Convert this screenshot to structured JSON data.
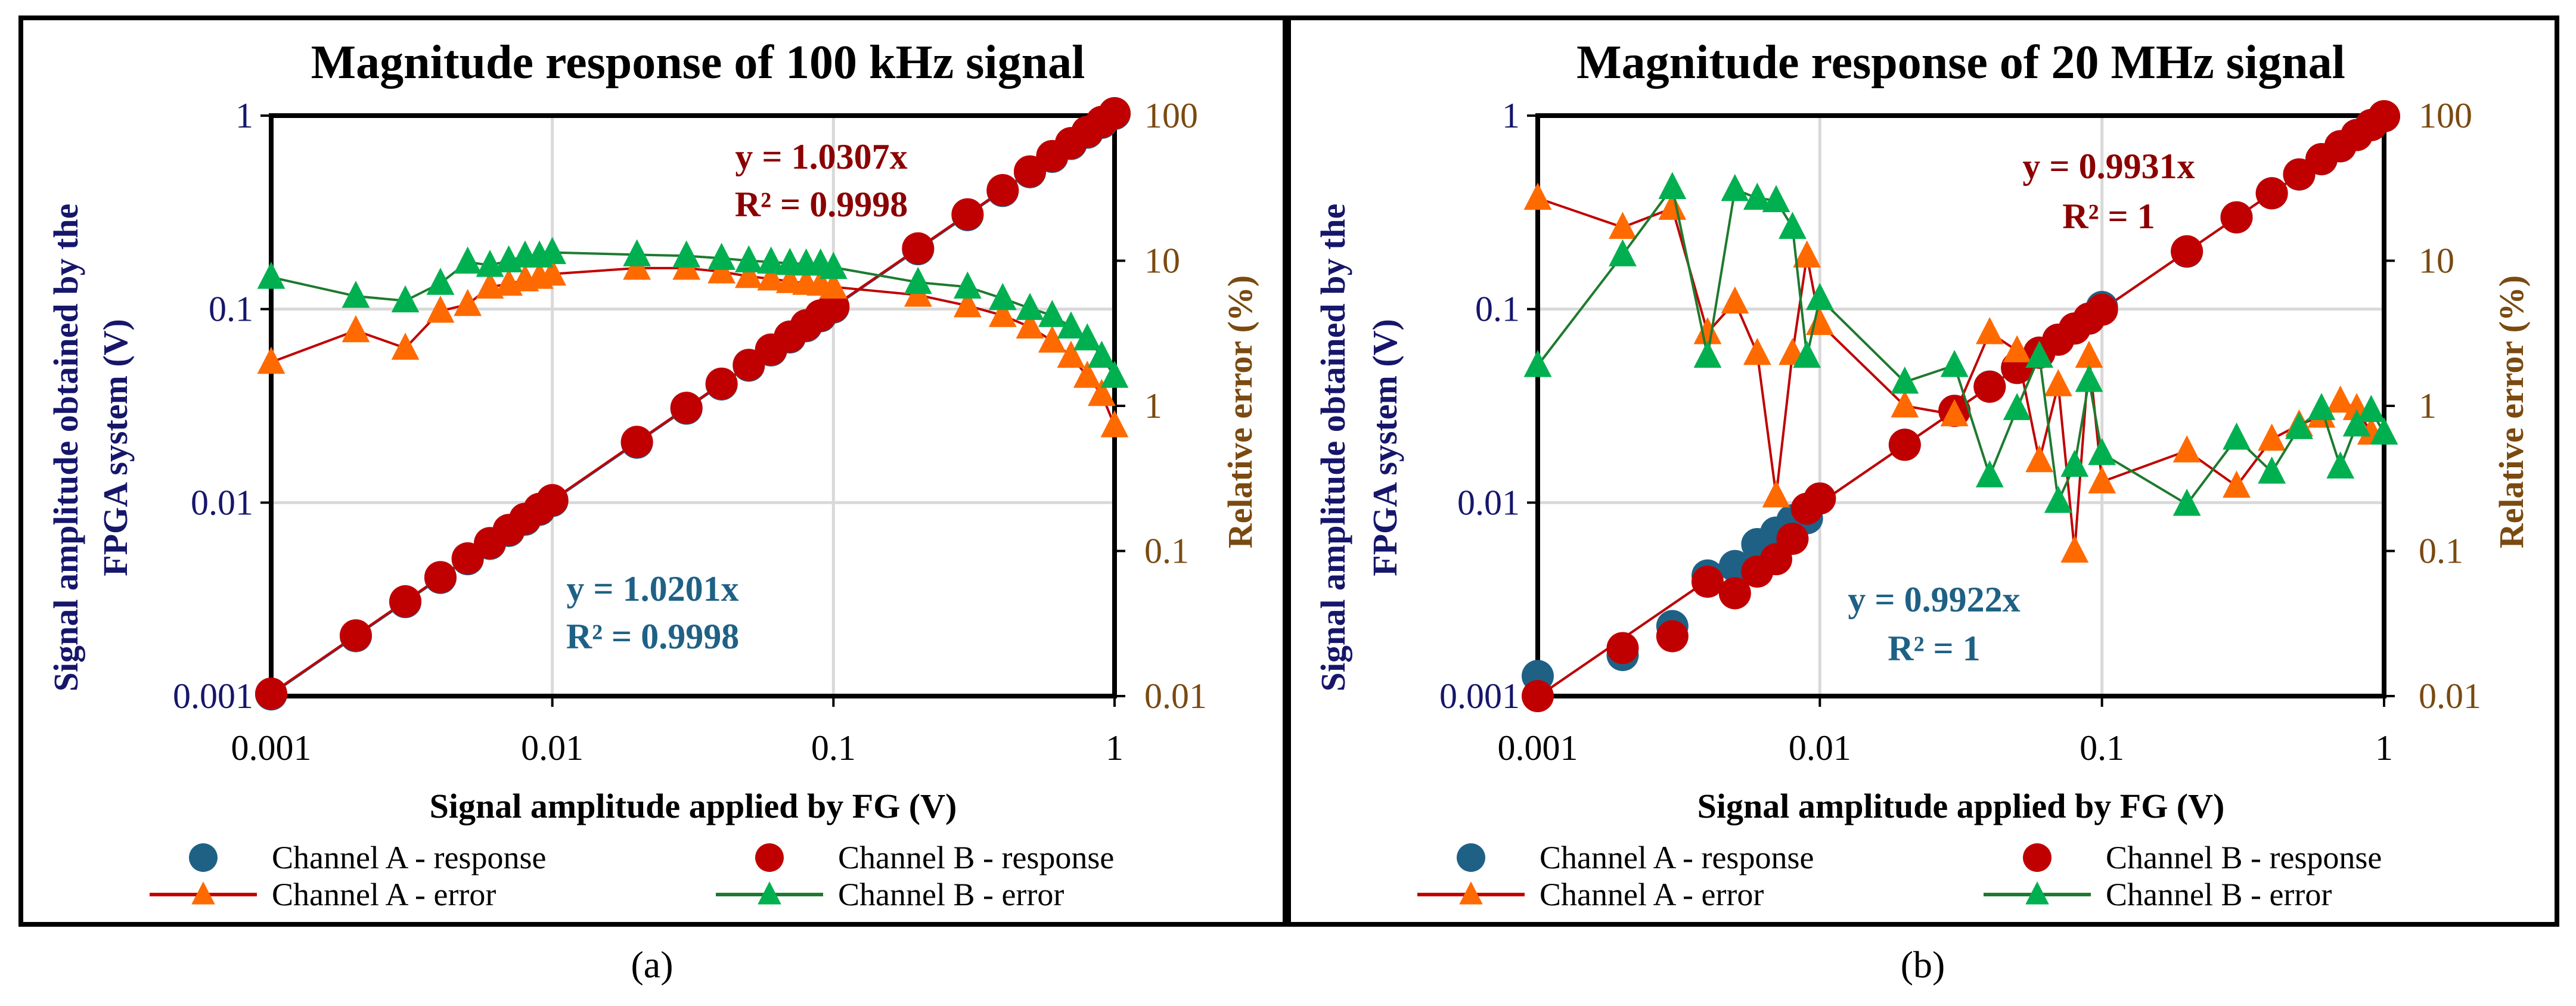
{
  "colors": {
    "channel_a_response": "#1f6185",
    "channel_b_response": "#c00000",
    "channel_a_error_marker": "#ff6a00",
    "channel_a_error_line": "#c00000",
    "channel_b_error_marker": "#00b050",
    "channel_b_error_line": "#1e7a2e",
    "left_axis": "#16166b",
    "right_axis": "#7a4a10",
    "eq_b": "#8b0000",
    "eq_a": "#1f6185"
  },
  "chart_data": [
    {
      "type": "scatter",
      "panel_label": "(a)",
      "title": "Magnitude response of 100 kHz signal",
      "xlabel": "Signal amplitude applied by FG (V)",
      "ylabel_lines": [
        "Signal amplitude obtained by the",
        "FPGA system (V)"
      ],
      "y2label": "Relative error (%)",
      "xscale": "log",
      "xlim": [
        0.001,
        1
      ],
      "xticks": [
        "0.001",
        "0.01",
        "0.1",
        "1"
      ],
      "yscale": "log",
      "ylim": [
        0.001,
        1
      ],
      "yticks": [
        "0.001",
        "0.01",
        "0.1",
        "1"
      ],
      "y2scale": "log",
      "y2lim": [
        0.01,
        100
      ],
      "y2ticks": [
        "0.01",
        "0.1",
        "1",
        "10",
        "100"
      ],
      "grid": true,
      "legend_position": "bottom",
      "x": [
        0.001,
        0.002,
        0.003,
        0.004,
        0.005,
        0.006,
        0.007,
        0.008,
        0.009,
        0.01,
        0.02,
        0.03,
        0.04,
        0.05,
        0.06,
        0.07,
        0.08,
        0.09,
        0.1,
        0.2,
        0.3,
        0.4,
        0.5,
        0.6,
        0.7,
        0.8,
        0.9,
        1
      ],
      "series": [
        {
          "name": "Channel A - response",
          "axis": "left",
          "kind": "marker-circle",
          "values": [
            0.00102,
            0.00204,
            0.00306,
            0.00408,
            0.0051,
            0.00612,
            0.00714,
            0.00816,
            0.00918,
            0.0102,
            0.0204,
            0.0306,
            0.0408,
            0.051,
            0.0612,
            0.0714,
            0.0816,
            0.0918,
            0.102,
            0.204,
            0.306,
            0.408,
            0.51,
            0.612,
            0.714,
            0.816,
            0.918,
            1.02
          ]
        },
        {
          "name": "Channel B - response",
          "axis": "left",
          "kind": "marker-circle",
          "values": [
            0.00103,
            0.00206,
            0.00309,
            0.00412,
            0.00515,
            0.00618,
            0.00722,
            0.00825,
            0.00928,
            0.0103,
            0.0206,
            0.0309,
            0.0412,
            0.0515,
            0.0618,
            0.0721,
            0.0825,
            0.0928,
            0.103,
            0.206,
            0.309,
            0.412,
            0.515,
            0.618,
            0.721,
            0.825,
            0.928,
            1.03
          ]
        },
        {
          "name": "Channel A - error",
          "axis": "right",
          "kind": "line-triangle",
          "values": [
            2.0,
            3.3,
            2.5,
            4.5,
            5.0,
            6.6,
            6.9,
            7.4,
            7.7,
            8.1,
            8.9,
            8.9,
            8.4,
            7.8,
            7.5,
            7.2,
            7.0,
            6.9,
            6.6,
            5.8,
            4.9,
            4.2,
            3.5,
            2.8,
            2.2,
            1.6,
            1.2,
            0.73
          ]
        },
        {
          "name": "Channel B - error",
          "axis": "right",
          "kind": "line-triangle",
          "values": [
            7.7,
            5.7,
            5.3,
            7.0,
            9.8,
            9.3,
            10.0,
            10.8,
            10.8,
            11.4,
            11.0,
            10.8,
            10.4,
            10.0,
            9.8,
            9.6,
            9.5,
            9.5,
            9.0,
            7.1,
            6.6,
            5.5,
            4.7,
            4.2,
            3.5,
            2.9,
            2.2,
            1.6
          ]
        }
      ],
      "trendlines": [
        {
          "series": "Channel B - response",
          "equation": "y = 1.0307x",
          "r2": "R² = 0.9998",
          "slope": 1.0307
        },
        {
          "series": "Channel A - response",
          "equation": "y = 1.0201x",
          "r2": "R² = 0.9998",
          "slope": 1.0201
        }
      ]
    },
    {
      "type": "scatter",
      "panel_label": "(b)",
      "title": "Magnitude response of 20 MHz signal",
      "xlabel": "Signal amplitude applied by FG (V)",
      "ylabel_lines": [
        "Signal amplitude obtained by the",
        "FPGA system (V)"
      ],
      "y2label": "Relative error (%)",
      "xscale": "log",
      "xlim": [
        0.001,
        1
      ],
      "xticks": [
        "0.001",
        "0.01",
        "0.1",
        "1"
      ],
      "yscale": "log",
      "ylim": [
        0.001,
        1
      ],
      "yticks": [
        "0.001",
        "0.01",
        "0.1",
        "1"
      ],
      "y2scale": "log",
      "y2lim": [
        0.01,
        100
      ],
      "y2ticks": [
        "0.01",
        "0.1",
        "1",
        "10",
        "100"
      ],
      "grid": true,
      "legend_position": "bottom",
      "x": [
        0.001,
        0.002,
        0.003,
        0.004,
        0.005,
        0.006,
        0.007,
        0.008,
        0.009,
        0.01,
        0.02,
        0.03,
        0.04,
        0.05,
        0.06,
        0.07,
        0.08,
        0.09,
        0.1,
        0.2,
        0.3,
        0.4,
        0.5,
        0.6,
        0.7,
        0.8,
        0.9,
        1
      ],
      "series": [
        {
          "name": "Channel A - response",
          "axis": "left",
          "kind": "marker-circle",
          "values": [
            0.00127,
            0.00163,
            0.0023,
            0.0042,
            0.0047,
            0.0061,
            0.007,
            0.0081,
            0.0083,
            0.0105,
            0.0199,
            0.0298,
            0.0398,
            0.0496,
            0.0595,
            0.0695,
            0.0794,
            0.0893,
            0.1025,
            0.198,
            0.298,
            0.397,
            0.496,
            0.595,
            0.694,
            0.794,
            0.893,
            0.992
          ]
        },
        {
          "name": "Channel B - response",
          "axis": "left",
          "kind": "marker-circle",
          "values": [
            0.001,
            0.00177,
            0.00204,
            0.0039,
            0.0034,
            0.0044,
            0.0051,
            0.0065,
            0.0093,
            0.0105,
            0.0199,
            0.0298,
            0.0397,
            0.0497,
            0.0596,
            0.0695,
            0.0794,
            0.0894,
            0.0993,
            0.199,
            0.298,
            0.397,
            0.497,
            0.596,
            0.695,
            0.794,
            0.894,
            0.993
          ]
        },
        {
          "name": "Channel A - error",
          "axis": "right",
          "kind": "line-triangle",
          "values": [
            27,
            17,
            23,
            3.2,
            5.2,
            2.3,
            0.24,
            2.3,
            10.8,
            3.7,
            1.0,
            0.87,
            3.2,
            2.4,
            0.42,
            1.4,
            0.1,
            2.2,
            0.3,
            0.49,
            0.28,
            0.59,
            0.74,
            0.85,
            1.08,
            0.96,
            0.65,
            0.65
          ]
        },
        {
          "name": "Channel B - error",
          "axis": "right",
          "kind": "line-triangle",
          "values": [
            1.9,
            11,
            32,
            2.2,
            31,
            27,
            26,
            17,
            2.2,
            5.5,
            1.46,
            1.9,
            0.33,
            0.96,
            2.2,
            0.22,
            0.39,
            1.5,
            0.47,
            0.21,
            0.6,
            0.35,
            0.71,
            0.96,
            0.38,
            0.74,
            0.93,
            0.65
          ]
        }
      ],
      "trendlines": [
        {
          "series": "Channel B - response",
          "equation": "y = 0.9931x",
          "r2": "R² = 1",
          "slope": 0.9931
        },
        {
          "series": "Channel A - response",
          "equation": "y = 0.9922x",
          "r2": "R² = 1",
          "slope": 0.9922
        }
      ]
    }
  ]
}
